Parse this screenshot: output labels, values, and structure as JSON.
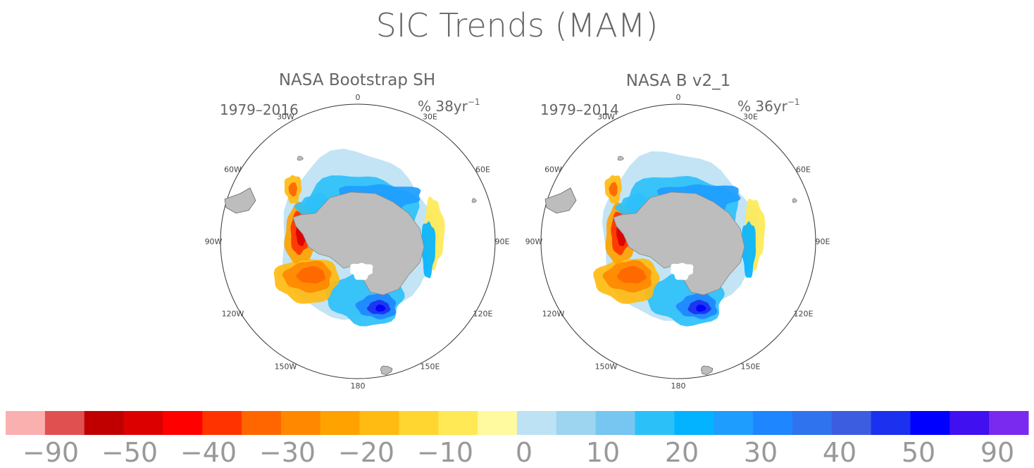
{
  "title": "SIC Trends (MAM)",
  "panels": [
    {
      "title": "NASA Bootstrap SH",
      "period": "1979–2016",
      "units": "% 38yr",
      "units_exp": "−1",
      "lon_labels": [
        "0",
        "30E",
        "60E",
        "90E",
        "120E",
        "150E",
        "180",
        "150W",
        "120W",
        "90W",
        "60W",
        "30W"
      ]
    },
    {
      "title": "NASA B v2_1",
      "period": "1979–2014",
      "units": "% 36yr",
      "units_exp": "−1",
      "lon_labels": [
        "0",
        "30E",
        "60E",
        "90E",
        "120E",
        "150E",
        "180",
        "150W",
        "120W",
        "90W",
        "60W",
        "30W"
      ]
    }
  ],
  "colorbar": {
    "colors": [
      "#fbb0b0",
      "#e05050",
      "#c00000",
      "#dc0000",
      "#ff0000",
      "#ff3300",
      "#ff6600",
      "#ff8800",
      "#ffa200",
      "#ffbb11",
      "#ffd530",
      "#ffe955",
      "#fff9a0",
      "#bde2f4",
      "#9dd4f0",
      "#76c6f1",
      "#2cc0f8",
      "#04b3ff",
      "#1e9dff",
      "#1e87ff",
      "#2f73ee",
      "#3c5de0",
      "#1c30ef",
      "#0000ff",
      "#4010f0",
      "#7a2aee"
    ],
    "labels": [
      "−90",
      "−50",
      "−40",
      "−30",
      "−20",
      "−10",
      "0",
      "10",
      "20",
      "30",
      "40",
      "50",
      "90"
    ]
  },
  "style": {
    "land": "#bdbdbd",
    "ocean": "#ffffff",
    "outline": "#333333"
  }
}
